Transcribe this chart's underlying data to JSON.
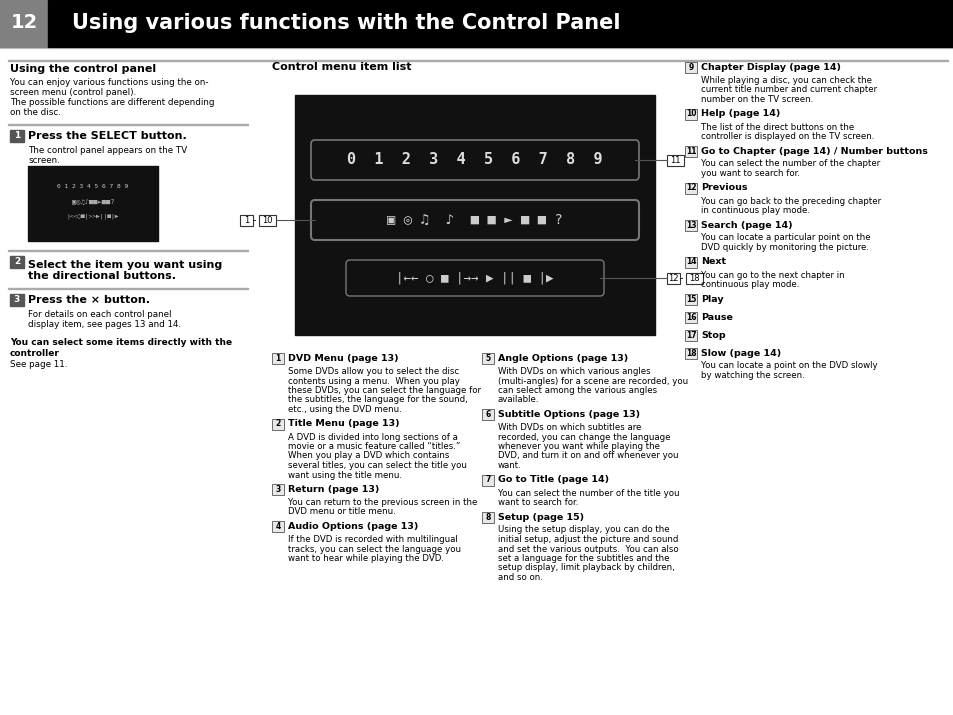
{
  "page_number": "12",
  "header_title": "Using various functions with the Control Panel",
  "page_bg": "#ffffff",
  "left_section_title": "Using the control panel",
  "left_body1": "You can enjoy various functions using the on-",
  "left_body2": "screen menu (control panel).",
  "left_body3": "The possible functions are different depending",
  "left_body4": "on the disc.",
  "step1_title": "Press the SELECT button.",
  "step1_body1": "The control panel appears on the TV",
  "step1_body2": "screen.",
  "step2_title": "Select the item you want using",
  "step2_title2": "the directional buttons.",
  "step3_title": "Press the × button.",
  "step3_body1": "For details on each control panel",
  "step3_body2": "display item, see pages 13 and 14.",
  "note_bold1": "You can select some items directly with the",
  "note_bold2": "controller",
  "note_body": "See page 11.",
  "center_title": "Control menu item list",
  "right_col": [
    {
      "num": "9",
      "title": "Chapter Display (page 14)",
      "body": [
        "While playing a disc, you can check the",
        "current title number and current chapter",
        "number on the TV screen."
      ]
    },
    {
      "num": "10",
      "title": "Help (page 14)",
      "body": [
        "The list of the direct buttons on the",
        "controller is displayed on the TV screen."
      ]
    },
    {
      "num": "11",
      "title": "Go to Chapter (page 14) / Number buttons",
      "body": [
        "You can select the number of the chapter",
        "you want to search for."
      ]
    },
    {
      "num": "12",
      "title": "Previous",
      "body": [
        "You can go back to the preceding chapter",
        "in continuous play mode."
      ]
    },
    {
      "num": "13",
      "title": "Search (page 14)",
      "body": [
        "You can locate a particular point on the",
        "DVD quickly by monitoring the picture."
      ]
    },
    {
      "num": "14",
      "title": "Next",
      "body": [
        "You can go to the next chapter in",
        "continuous play mode."
      ]
    },
    {
      "num": "15",
      "title": "Play",
      "body": []
    },
    {
      "num": "16",
      "title": "Pause",
      "body": []
    },
    {
      "num": "17",
      "title": "Stop",
      "body": []
    },
    {
      "num": "18",
      "title": "Slow (page 14)",
      "body": [
        "You can locate a point on the DVD slowly",
        "by watching the screen."
      ]
    }
  ],
  "bottom_left": [
    {
      "num": "1",
      "title": "DVD Menu (page 13)",
      "body": [
        "Some DVDs allow you to select the disc",
        "contents using a menu.  When you play",
        "these DVDs, you can select the language for",
        "the subtitles, the language for the sound,",
        "etc., using the DVD menu."
      ]
    },
    {
      "num": "2",
      "title": "Title Menu (page 13)",
      "body": [
        "A DVD is divided into long sections of a",
        "movie or a music feature called “titles.”",
        "When you play a DVD which contains",
        "several titles, you can select the title you",
        "want using the title menu."
      ]
    },
    {
      "num": "3",
      "title": "Return (page 13)",
      "body": [
        "You can return to the previous screen in the",
        "DVD menu or title menu."
      ]
    },
    {
      "num": "4",
      "title": "Audio Options (page 13)",
      "body": [
        "If the DVD is recorded with multilingual",
        "tracks, you can select the language you",
        "want to hear while playing the DVD."
      ]
    }
  ],
  "bottom_right": [
    {
      "num": "5",
      "title": "Angle Options (page 13)",
      "body": [
        "With DVDs on which various angles",
        "(multi-angles) for a scene are recorded, you",
        "can select among the various angles",
        "available."
      ]
    },
    {
      "num": "6",
      "title": "Subtitle Options (page 13)",
      "body": [
        "With DVDs on which subtitles are",
        "recorded, you can change the language",
        "whenever you want while playing the",
        "DVD, and turn it on and off whenever you",
        "want."
      ]
    },
    {
      "num": "7",
      "title": "Go to Title (page 14)",
      "body": [
        "You can select the number of the title you",
        "want to search for."
      ]
    },
    {
      "num": "8",
      "title": "Setup (page 15)",
      "body": [
        "Using the setup display, you can do the",
        "initial setup, adjust the picture and sound",
        "and set the various outputs.  You can also",
        "set a language for the subtitles and the",
        "setup display, limit playback by children,",
        "and so on."
      ]
    }
  ]
}
